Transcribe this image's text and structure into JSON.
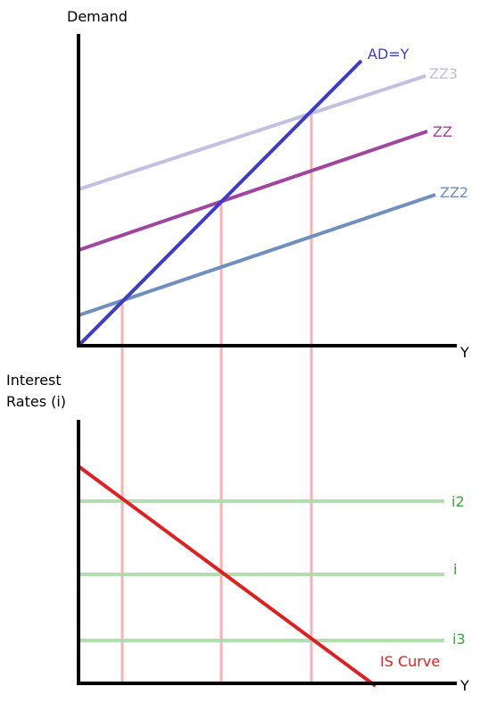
{
  "top_panel": {
    "y_axis_label": "Demand",
    "x_axis_label": "Y",
    "curves": {
      "ad": {
        "label": "AD=Y",
        "color": "#3c3cc8"
      },
      "zz3": {
        "label": "ZZ3",
        "color": "#c2bfe3"
      },
      "zz": {
        "label": "ZZ",
        "color": "#a1469e"
      },
      "zz2": {
        "label": "ZZ2",
        "color": "#6f8fbf"
      }
    }
  },
  "bottom_panel": {
    "y_axis_label_line1": "Interest",
    "y_axis_label_line2": "Rates (i)",
    "x_axis_label": "Y",
    "is_curve": {
      "label": "IS Curve",
      "color": "#e02020"
    },
    "rates": {
      "i2": {
        "label": "i2",
        "color": "#33aa33"
      },
      "i": {
        "label": "i",
        "color": "#33aa33"
      },
      "i3": {
        "label": "i3",
        "color": "#33aa33"
      }
    }
  },
  "guide_color": "#f08080",
  "green_line_color": "#a8dca8"
}
